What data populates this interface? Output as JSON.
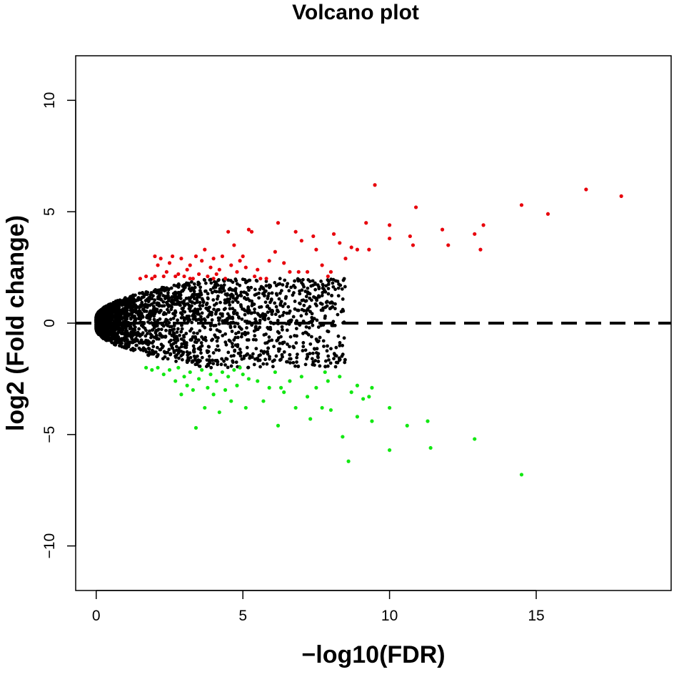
{
  "chart_data": {
    "type": "scatter",
    "title": "Volcano plot",
    "xlabel": "−log10(FDR)",
    "ylabel": "log2 (Fold change)",
    "xlim": [
      -0.7,
      19.6
    ],
    "ylim": [
      -12,
      12
    ],
    "xticks": [
      0,
      5,
      10,
      15
    ],
    "xtick_labels": [
      "0",
      "5",
      "10",
      "15"
    ],
    "yticks": [
      -10,
      -5,
      0,
      5,
      10
    ],
    "ytick_labels": [
      "−10",
      "−5",
      "0",
      "5",
      "10"
    ],
    "hline_y": 0,
    "hline_style": "dashed",
    "grid": false,
    "legend": "none",
    "colors": {
      "up": "#e8000b",
      "down": "#12e812",
      "not_significant": "#000000"
    },
    "series": [
      {
        "color": "#e8000b",
        "points": [
          [
            1.5,
            2.0
          ],
          [
            1.7,
            2.1
          ],
          [
            1.9,
            2.0
          ],
          [
            2.0,
            2.1
          ],
          [
            2.1,
            2.6
          ],
          [
            2.2,
            2.9
          ],
          [
            2.3,
            2.1
          ],
          [
            2.4,
            2.3
          ],
          [
            2.5,
            2.7
          ],
          [
            2.6,
            3.0
          ],
          [
            2.7,
            2.1
          ],
          [
            2.8,
            2.2
          ],
          [
            2.9,
            2.9
          ],
          [
            3.0,
            2.1
          ],
          [
            3.1,
            2.4
          ],
          [
            3.2,
            2.6
          ],
          [
            3.3,
            2.0
          ],
          [
            3.4,
            3.0
          ],
          [
            3.5,
            2.2
          ],
          [
            3.6,
            2.8
          ],
          [
            3.7,
            3.3
          ],
          [
            3.8,
            2.1
          ],
          [
            3.9,
            2.5
          ],
          [
            4.0,
            2.9
          ],
          [
            4.1,
            2.2
          ],
          [
            4.2,
            2.4
          ],
          [
            4.3,
            3.0
          ],
          [
            4.4,
            2.0
          ],
          [
            4.5,
            4.1
          ],
          [
            4.6,
            2.6
          ],
          [
            4.7,
            3.5
          ],
          [
            4.8,
            2.3
          ],
          [
            4.9,
            2.8
          ],
          [
            5.0,
            3.0
          ],
          [
            5.1,
            2.5
          ],
          [
            5.2,
            4.2
          ],
          [
            5.3,
            4.1
          ],
          [
            5.4,
            2.1
          ],
          [
            5.5,
            2.4
          ],
          [
            5.6,
            2.0
          ],
          [
            5.9,
            2.8
          ],
          [
            6.1,
            3.2
          ],
          [
            6.2,
            4.5
          ],
          [
            6.4,
            2.7
          ],
          [
            6.6,
            2.3
          ],
          [
            6.8,
            4.1
          ],
          [
            7.0,
            3.7
          ],
          [
            7.2,
            2.3
          ],
          [
            7.4,
            3.9
          ],
          [
            7.5,
            3.3
          ],
          [
            7.7,
            2.6
          ],
          [
            7.9,
            2.1
          ],
          [
            8.0,
            2.3
          ],
          [
            8.1,
            4.0
          ],
          [
            8.3,
            3.6
          ],
          [
            8.5,
            2.9
          ],
          [
            8.7,
            3.4
          ],
          [
            8.9,
            3.3
          ],
          [
            9.2,
            4.5
          ],
          [
            9.3,
            3.3
          ],
          [
            9.5,
            6.2
          ],
          [
            10.0,
            4.4
          ],
          [
            10.0,
            3.8
          ],
          [
            10.7,
            3.9
          ],
          [
            10.8,
            3.5
          ],
          [
            10.9,
            5.2
          ],
          [
            11.8,
            4.2
          ],
          [
            12.0,
            3.5
          ],
          [
            12.9,
            4.0
          ],
          [
            13.1,
            3.3
          ],
          [
            13.2,
            4.4
          ],
          [
            14.5,
            5.3
          ],
          [
            15.4,
            4.9
          ],
          [
            16.7,
            6.0
          ],
          [
            17.9,
            5.7
          ],
          [
            4.0,
            2.0
          ],
          [
            3.2,
            2.0
          ],
          [
            2.0,
            3.0
          ],
          [
            5.8,
            2.0
          ],
          [
            6.9,
            2.3
          ]
        ]
      },
      {
        "color": "#12e812",
        "points": [
          [
            1.7,
            -2.0
          ],
          [
            1.9,
            -2.1
          ],
          [
            2.1,
            -2.0
          ],
          [
            2.3,
            -2.3
          ],
          [
            2.5,
            -2.1
          ],
          [
            2.7,
            -2.6
          ],
          [
            2.8,
            -2.0
          ],
          [
            2.9,
            -3.2
          ],
          [
            3.0,
            -2.4
          ],
          [
            3.1,
            -2.8
          ],
          [
            3.2,
            -2.2
          ],
          [
            3.3,
            -3.0
          ],
          [
            3.4,
            -4.7
          ],
          [
            3.5,
            -2.5
          ],
          [
            3.6,
            -2.1
          ],
          [
            3.7,
            -3.8
          ],
          [
            3.8,
            -2.9
          ],
          [
            3.9,
            -2.3
          ],
          [
            4.0,
            -3.2
          ],
          [
            4.1,
            -2.6
          ],
          [
            4.2,
            -4.0
          ],
          [
            4.3,
            -2.2
          ],
          [
            4.4,
            -3.0
          ],
          [
            4.5,
            -2.4
          ],
          [
            4.6,
            -3.5
          ],
          [
            4.7,
            -2.1
          ],
          [
            4.8,
            -2.8
          ],
          [
            4.9,
            -2.0
          ],
          [
            5.0,
            -2.3
          ],
          [
            5.1,
            -3.8
          ],
          [
            5.2,
            -2.5
          ],
          [
            5.5,
            -2.6
          ],
          [
            5.7,
            -3.5
          ],
          [
            5.9,
            -2.9
          ],
          [
            6.1,
            -2.2
          ],
          [
            6.2,
            -4.6
          ],
          [
            6.4,
            -3.1
          ],
          [
            6.6,
            -2.6
          ],
          [
            6.8,
            -3.8
          ],
          [
            7.0,
            -2.4
          ],
          [
            7.2,
            -3.3
          ],
          [
            7.3,
            -4.3
          ],
          [
            7.5,
            -2.9
          ],
          [
            7.7,
            -3.8
          ],
          [
            7.9,
            -2.6
          ],
          [
            8.0,
            -3.9
          ],
          [
            8.3,
            -2.4
          ],
          [
            8.4,
            -5.1
          ],
          [
            8.6,
            -6.2
          ],
          [
            8.7,
            -3.1
          ],
          [
            8.9,
            -4.2
          ],
          [
            9.1,
            -3.4
          ],
          [
            9.3,
            -3.3
          ],
          [
            9.4,
            -2.9
          ],
          [
            10.0,
            -3.8
          ],
          [
            10.0,
            -5.7
          ],
          [
            10.6,
            -4.6
          ],
          [
            11.3,
            -4.4
          ],
          [
            11.4,
            -5.6
          ],
          [
            12.9,
            -5.2
          ],
          [
            14.5,
            -6.8
          ],
          [
            8.9,
            -2.8
          ],
          [
            9.4,
            -4.4
          ],
          [
            6.3,
            -2.9
          ],
          [
            7.8,
            -2.2
          ]
        ]
      }
    ],
    "not_significant_cloud": {
      "color": "#000000",
      "x_range": [
        0.0,
        8.5
      ],
      "y_abs_max": 2.0,
      "count": 2600
    }
  }
}
